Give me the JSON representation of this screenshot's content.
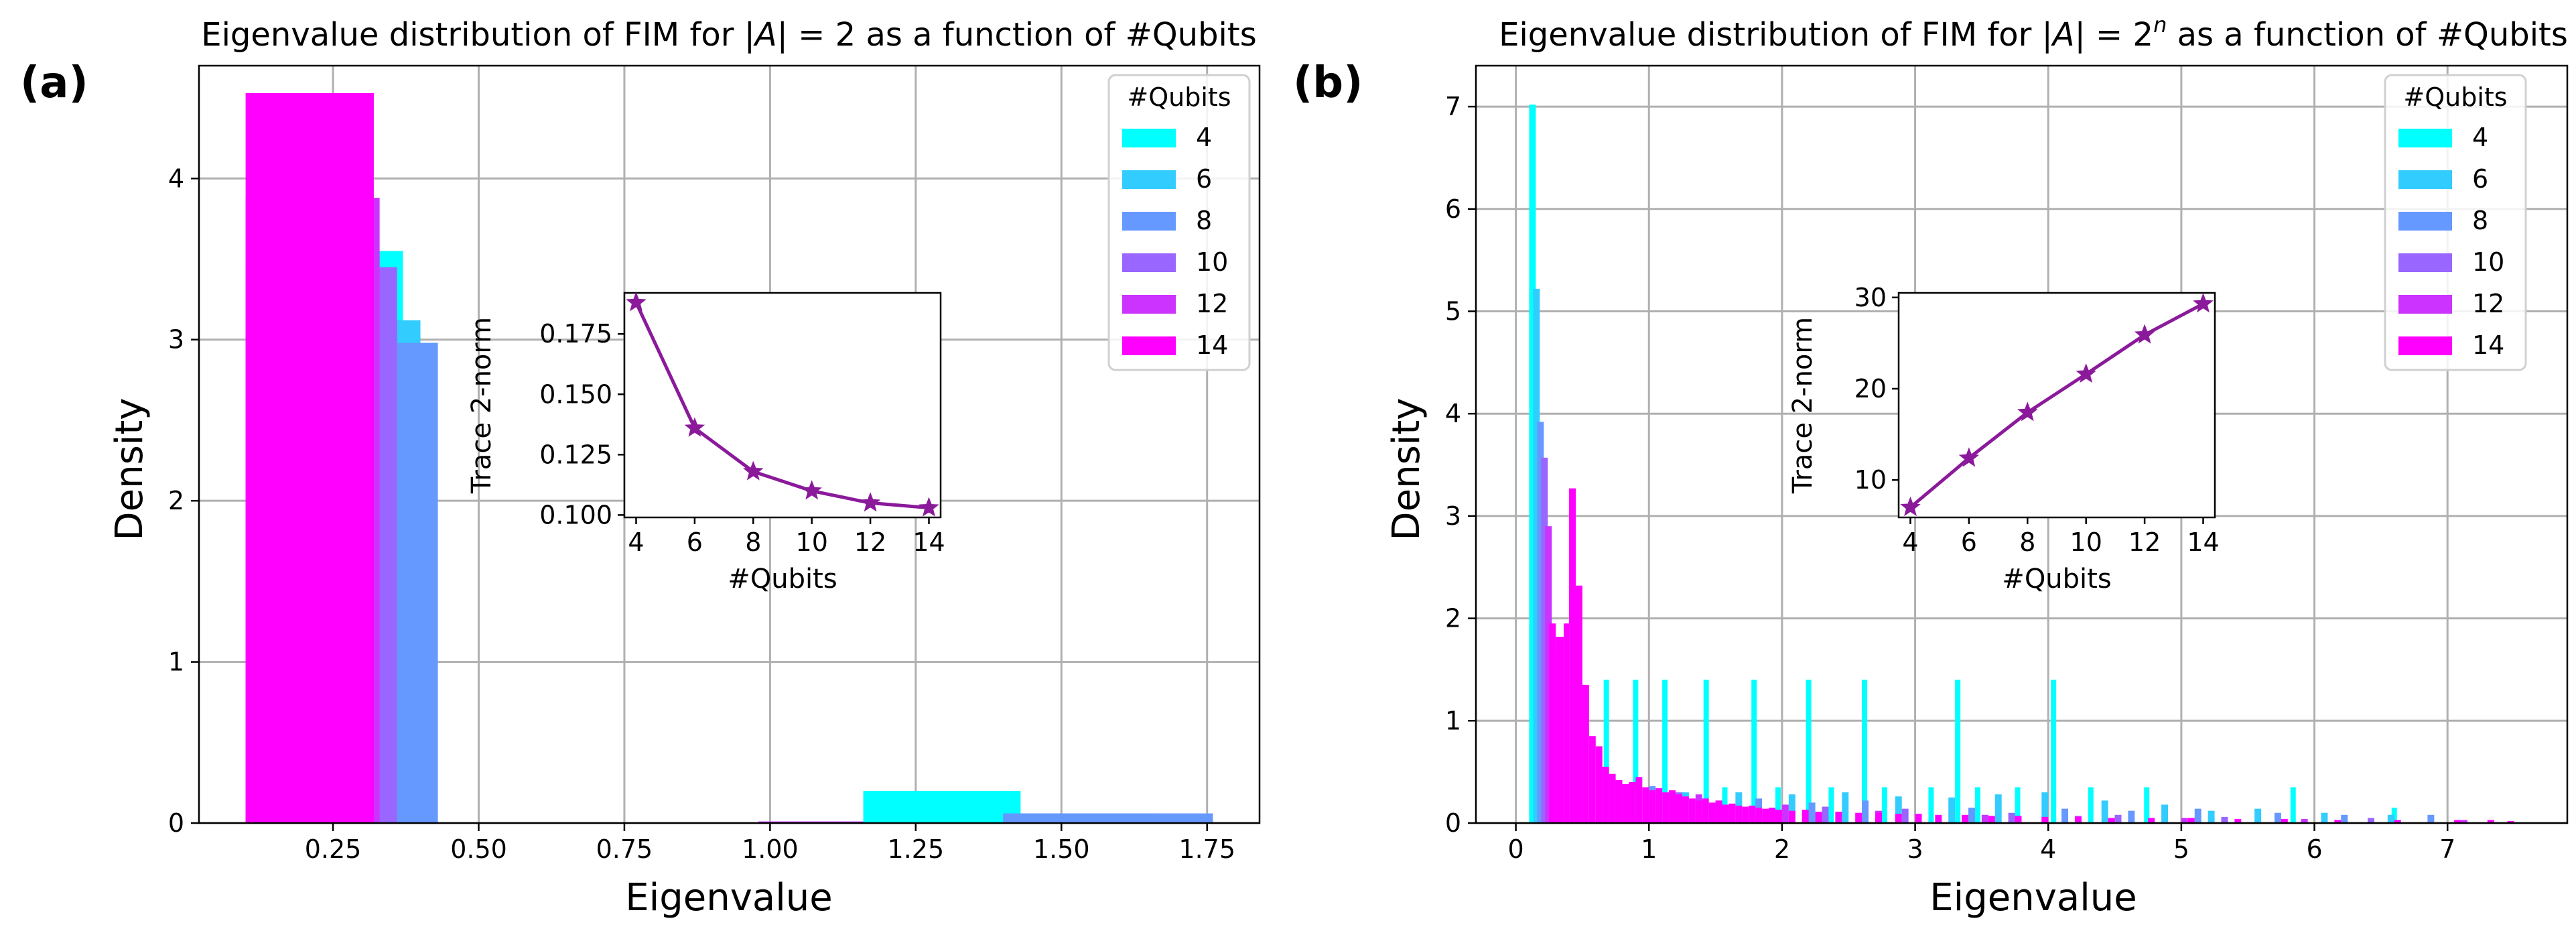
{
  "chart_data": [
    {
      "panel": "(a)",
      "type": "bar",
      "title": "Eigenvalue distribution of FIM for |A| = 2 as a function of #Qubits",
      "xlabel": "Eigenvalue",
      "ylabel": "Density",
      "xlim": [
        0.02,
        1.84
      ],
      "ylim": [
        0,
        4.7
      ],
      "xticks": [
        "0.25",
        "0.50",
        "0.75",
        "1.00",
        "1.25",
        "1.50",
        "1.75"
      ],
      "yticks": [
        "0",
        "1",
        "2",
        "3",
        "4"
      ],
      "grid": true,
      "legend": {
        "title": "#Qubits",
        "placement": "top-right"
      },
      "series": [
        {
          "name": "4",
          "color": "#00ffff",
          "bins": [
            [
              0.1,
              0.37,
              3.55
            ],
            [
              0.37,
              1.16,
              0.0
            ],
            [
              1.16,
              1.43,
              0.2
            ]
          ]
        },
        {
          "name": "6",
          "color": "#33ccff",
          "bins": [
            [
              0.1,
              0.4,
              3.12
            ],
            [
              0.4,
              1.4,
              0.0
            ],
            [
              1.4,
              1.66,
              0.06
            ]
          ]
        },
        {
          "name": "8",
          "color": "#6699ff",
          "bins": [
            [
              0.1,
              0.43,
              2.98
            ],
            [
              0.43,
              1.4,
              0.0
            ],
            [
              1.4,
              1.76,
              0.06
            ]
          ]
        },
        {
          "name": "10",
          "color": "#9966ff",
          "bins": [
            [
              0.1,
              0.36,
              3.45
            ]
          ]
        },
        {
          "name": "12",
          "color": "#cc33ff",
          "bins": [
            [
              0.1,
              0.33,
              3.88
            ],
            [
              0.98,
              1.16,
              0.01
            ]
          ]
        },
        {
          "name": "14",
          "color": "#ff00ff",
          "bins": [
            [
              0.1,
              0.32,
              4.53
            ]
          ]
        }
      ],
      "inset": {
        "type": "line",
        "xlabel": "#Qubits",
        "ylabel": "Trace 2-norm",
        "x": [
          4,
          6,
          8,
          10,
          12,
          14
        ],
        "y": [
          0.188,
          0.136,
          0.118,
          0.11,
          0.105,
          0.103
        ],
        "xlim": [
          3.6,
          14.4
        ],
        "ylim": [
          0.099,
          0.192
        ],
        "xticks": [
          "4",
          "6",
          "8",
          "10",
          "12",
          "14"
        ],
        "yticks": [
          "0.100",
          "0.125",
          "0.150",
          "0.175"
        ],
        "color": "#8b1a9b",
        "marker": "star"
      }
    },
    {
      "panel": "(b)",
      "type": "bar",
      "title": "Eigenvalue distribution of FIM for |A| = 2^n as a function of #Qubits",
      "xlabel": "Eigenvalue",
      "ylabel": "Density",
      "xlim": [
        -0.3,
        7.9
      ],
      "ylim": [
        0,
        7.4
      ],
      "xticks": [
        "0",
        "1",
        "2",
        "3",
        "4",
        "5",
        "6",
        "7"
      ],
      "yticks": [
        "0",
        "1",
        "2",
        "3",
        "4",
        "5",
        "6",
        "7"
      ],
      "grid": true,
      "legend": {
        "title": "#Qubits",
        "placement": "top-right"
      },
      "series": [
        {
          "name": "4",
          "color": "#00ffff",
          "bins": [
            [
              0.1,
              0.15,
              7.02
            ],
            [
              0.66,
              0.7,
              1.4
            ],
            [
              0.88,
              0.92,
              1.4
            ],
            [
              1.1,
              1.14,
              1.4
            ],
            [
              1.41,
              1.45,
              1.4
            ],
            [
              1.77,
              1.81,
              1.4
            ],
            [
              2.18,
              2.22,
              1.4
            ],
            [
              2.6,
              2.64,
              1.4
            ],
            [
              3.3,
              3.34,
              1.4
            ],
            [
              4.02,
              4.06,
              1.4
            ],
            [
              1.55,
              1.59,
              0.35
            ],
            [
              1.95,
              1.99,
              0.35
            ],
            [
              2.35,
              2.39,
              0.35
            ],
            [
              2.75,
              2.79,
              0.35
            ],
            [
              3.1,
              3.14,
              0.35
            ],
            [
              3.45,
              3.49,
              0.35
            ],
            [
              3.75,
              3.79,
              0.35
            ],
            [
              4.3,
              4.34,
              0.35
            ],
            [
              4.72,
              4.76,
              0.35
            ],
            [
              5.82,
              5.86,
              0.35
            ],
            [
              6.58,
              6.62,
              0.15
            ]
          ]
        },
        {
          "name": "6",
          "color": "#33ccff",
          "bins": [
            [
              0.13,
              0.18,
              5.22
            ],
            [
              0.25,
              0.3,
              1.7
            ],
            [
              1.25,
              1.3,
              0.3
            ],
            [
              1.65,
              1.7,
              0.3
            ],
            [
              2.05,
              2.1,
              0.28
            ],
            [
              2.45,
              2.5,
              0.3
            ],
            [
              2.85,
              2.9,
              0.26
            ],
            [
              3.25,
              3.3,
              0.25
            ],
            [
              3.6,
              3.65,
              0.28
            ],
            [
              3.95,
              4.0,
              0.3
            ],
            [
              4.4,
              4.45,
              0.22
            ],
            [
              4.85,
              4.9,
              0.18
            ],
            [
              5.2,
              5.25,
              0.12
            ],
            [
              5.55,
              5.6,
              0.14
            ],
            [
              6.05,
              6.1,
              0.1
            ],
            [
              6.55,
              6.6,
              0.08
            ]
          ]
        },
        {
          "name": "8",
          "color": "#6699ff",
          "bins": [
            [
              0.16,
              0.21,
              3.92
            ],
            [
              0.63,
              0.68,
              0.55
            ],
            [
              1.0,
              1.05,
              0.36
            ],
            [
              1.8,
              1.85,
              0.24
            ],
            [
              2.2,
              2.25,
              0.2
            ],
            [
              2.6,
              2.65,
              0.22
            ],
            [
              3.4,
              3.45,
              0.15
            ],
            [
              4.1,
              4.15,
              0.14
            ],
            [
              4.6,
              4.65,
              0.12
            ],
            [
              5.1,
              5.15,
              0.14
            ],
            [
              5.7,
              5.75,
              0.1
            ],
            [
              6.2,
              6.25,
              0.08
            ],
            [
              6.85,
              6.9,
              0.08
            ]
          ]
        },
        {
          "name": "10",
          "color": "#9966ff",
          "bins": [
            [
              0.19,
              0.24,
              3.57
            ],
            [
              0.7,
              0.75,
              0.45
            ],
            [
              1.2,
              1.25,
              0.3
            ],
            [
              1.5,
              1.55,
              0.22
            ],
            [
              2.3,
              2.35,
              0.16
            ],
            [
              2.9,
              2.95,
              0.14
            ],
            [
              3.7,
              3.75,
              0.1
            ],
            [
              4.5,
              4.55,
              0.08
            ],
            [
              5.3,
              5.35,
              0.06
            ],
            [
              6.4,
              6.45,
              0.05
            ]
          ]
        },
        {
          "name": "12",
          "color": "#cc33ff",
          "bins": [
            [
              0.22,
              0.27,
              2.9
            ],
            [
              0.3,
              0.35,
              1.7
            ],
            [
              0.75,
              0.8,
              0.4
            ],
            [
              1.35,
              1.4,
              0.28
            ],
            [
              2.0,
              2.05,
              0.18
            ],
            [
              2.7,
              2.75,
              0.12
            ],
            [
              3.5,
              3.55,
              0.08
            ],
            [
              4.2,
              4.25,
              0.07
            ],
            [
              5.0,
              5.05,
              0.05
            ],
            [
              5.9,
              5.95,
              0.04
            ],
            [
              7.1,
              7.15,
              0.03
            ]
          ]
        },
        {
          "name": "14",
          "color": "#ff00ff",
          "bins": [
            [
              0.25,
              0.3,
              1.95
            ],
            [
              0.3,
              0.36,
              1.82
            ],
            [
              0.36,
              0.4,
              1.95
            ],
            [
              0.4,
              0.45,
              3.27
            ],
            [
              0.45,
              0.5,
              2.32
            ],
            [
              0.5,
              0.55,
              1.35
            ],
            [
              0.55,
              0.6,
              0.85
            ],
            [
              0.6,
              0.65,
              0.75
            ],
            [
              0.65,
              0.7,
              0.55
            ],
            [
              0.7,
              0.75,
              0.48
            ],
            [
              0.75,
              0.8,
              0.42
            ],
            [
              0.8,
              0.85,
              0.38
            ],
            [
              0.85,
              0.9,
              0.4
            ],
            [
              0.9,
              0.95,
              0.45
            ],
            [
              0.95,
              1.0,
              0.35
            ],
            [
              1.0,
              1.05,
              0.32
            ],
            [
              1.05,
              1.1,
              0.34
            ],
            [
              1.1,
              1.15,
              0.3
            ],
            [
              1.15,
              1.2,
              0.32
            ],
            [
              1.2,
              1.25,
              0.28
            ],
            [
              1.25,
              1.3,
              0.26
            ],
            [
              1.3,
              1.35,
              0.24
            ],
            [
              1.35,
              1.4,
              0.22
            ],
            [
              1.4,
              1.45,
              0.24
            ],
            [
              1.45,
              1.5,
              0.2
            ],
            [
              1.5,
              1.55,
              0.22
            ],
            [
              1.55,
              1.6,
              0.18
            ],
            [
              1.6,
              1.65,
              0.19
            ],
            [
              1.65,
              1.7,
              0.17
            ],
            [
              1.7,
              1.75,
              0.16
            ],
            [
              1.75,
              1.8,
              0.17
            ],
            [
              1.8,
              1.85,
              0.15
            ],
            [
              1.85,
              1.9,
              0.14
            ],
            [
              1.9,
              1.95,
              0.15
            ],
            [
              1.95,
              2.0,
              0.13
            ],
            [
              2.05,
              2.1,
              0.12
            ],
            [
              2.15,
              2.2,
              0.13
            ],
            [
              2.25,
              2.3,
              0.11
            ],
            [
              2.4,
              2.45,
              0.11
            ],
            [
              2.55,
              2.6,
              0.1
            ],
            [
              2.7,
              2.75,
              0.1
            ],
            [
              2.85,
              2.9,
              0.09
            ],
            [
              3.0,
              3.05,
              0.09
            ],
            [
              3.15,
              3.2,
              0.08
            ],
            [
              3.35,
              3.4,
              0.08
            ],
            [
              3.55,
              3.6,
              0.07
            ],
            [
              3.75,
              3.8,
              0.07
            ],
            [
              3.95,
              4.0,
              0.06
            ],
            [
              4.2,
              4.25,
              0.06
            ],
            [
              4.45,
              4.5,
              0.05
            ],
            [
              4.75,
              4.8,
              0.05
            ],
            [
              5.05,
              5.1,
              0.05
            ],
            [
              5.4,
              5.45,
              0.04
            ],
            [
              5.75,
              5.8,
              0.04
            ],
            [
              6.15,
              6.2,
              0.03
            ],
            [
              6.6,
              6.65,
              0.03
            ],
            [
              7.05,
              7.1,
              0.03
            ],
            [
              7.3,
              7.35,
              0.03
            ],
            [
              7.45,
              7.5,
              0.02
            ]
          ]
        }
      ],
      "inset": {
        "type": "line",
        "xlabel": "#Qubits",
        "ylabel": "Trace 2-norm",
        "x": [
          4,
          6,
          8,
          10,
          12,
          14
        ],
        "y": [
          7.0,
          12.4,
          17.4,
          21.6,
          25.9,
          29.3
        ],
        "xlim": [
          3.6,
          14.4
        ],
        "ylim": [
          5.9,
          30.5
        ],
        "xticks": [
          "4",
          "6",
          "8",
          "10",
          "12",
          "14"
        ],
        "yticks": [
          "10",
          "20",
          "30"
        ],
        "color": "#8b1a9b",
        "marker": "star"
      }
    }
  ]
}
